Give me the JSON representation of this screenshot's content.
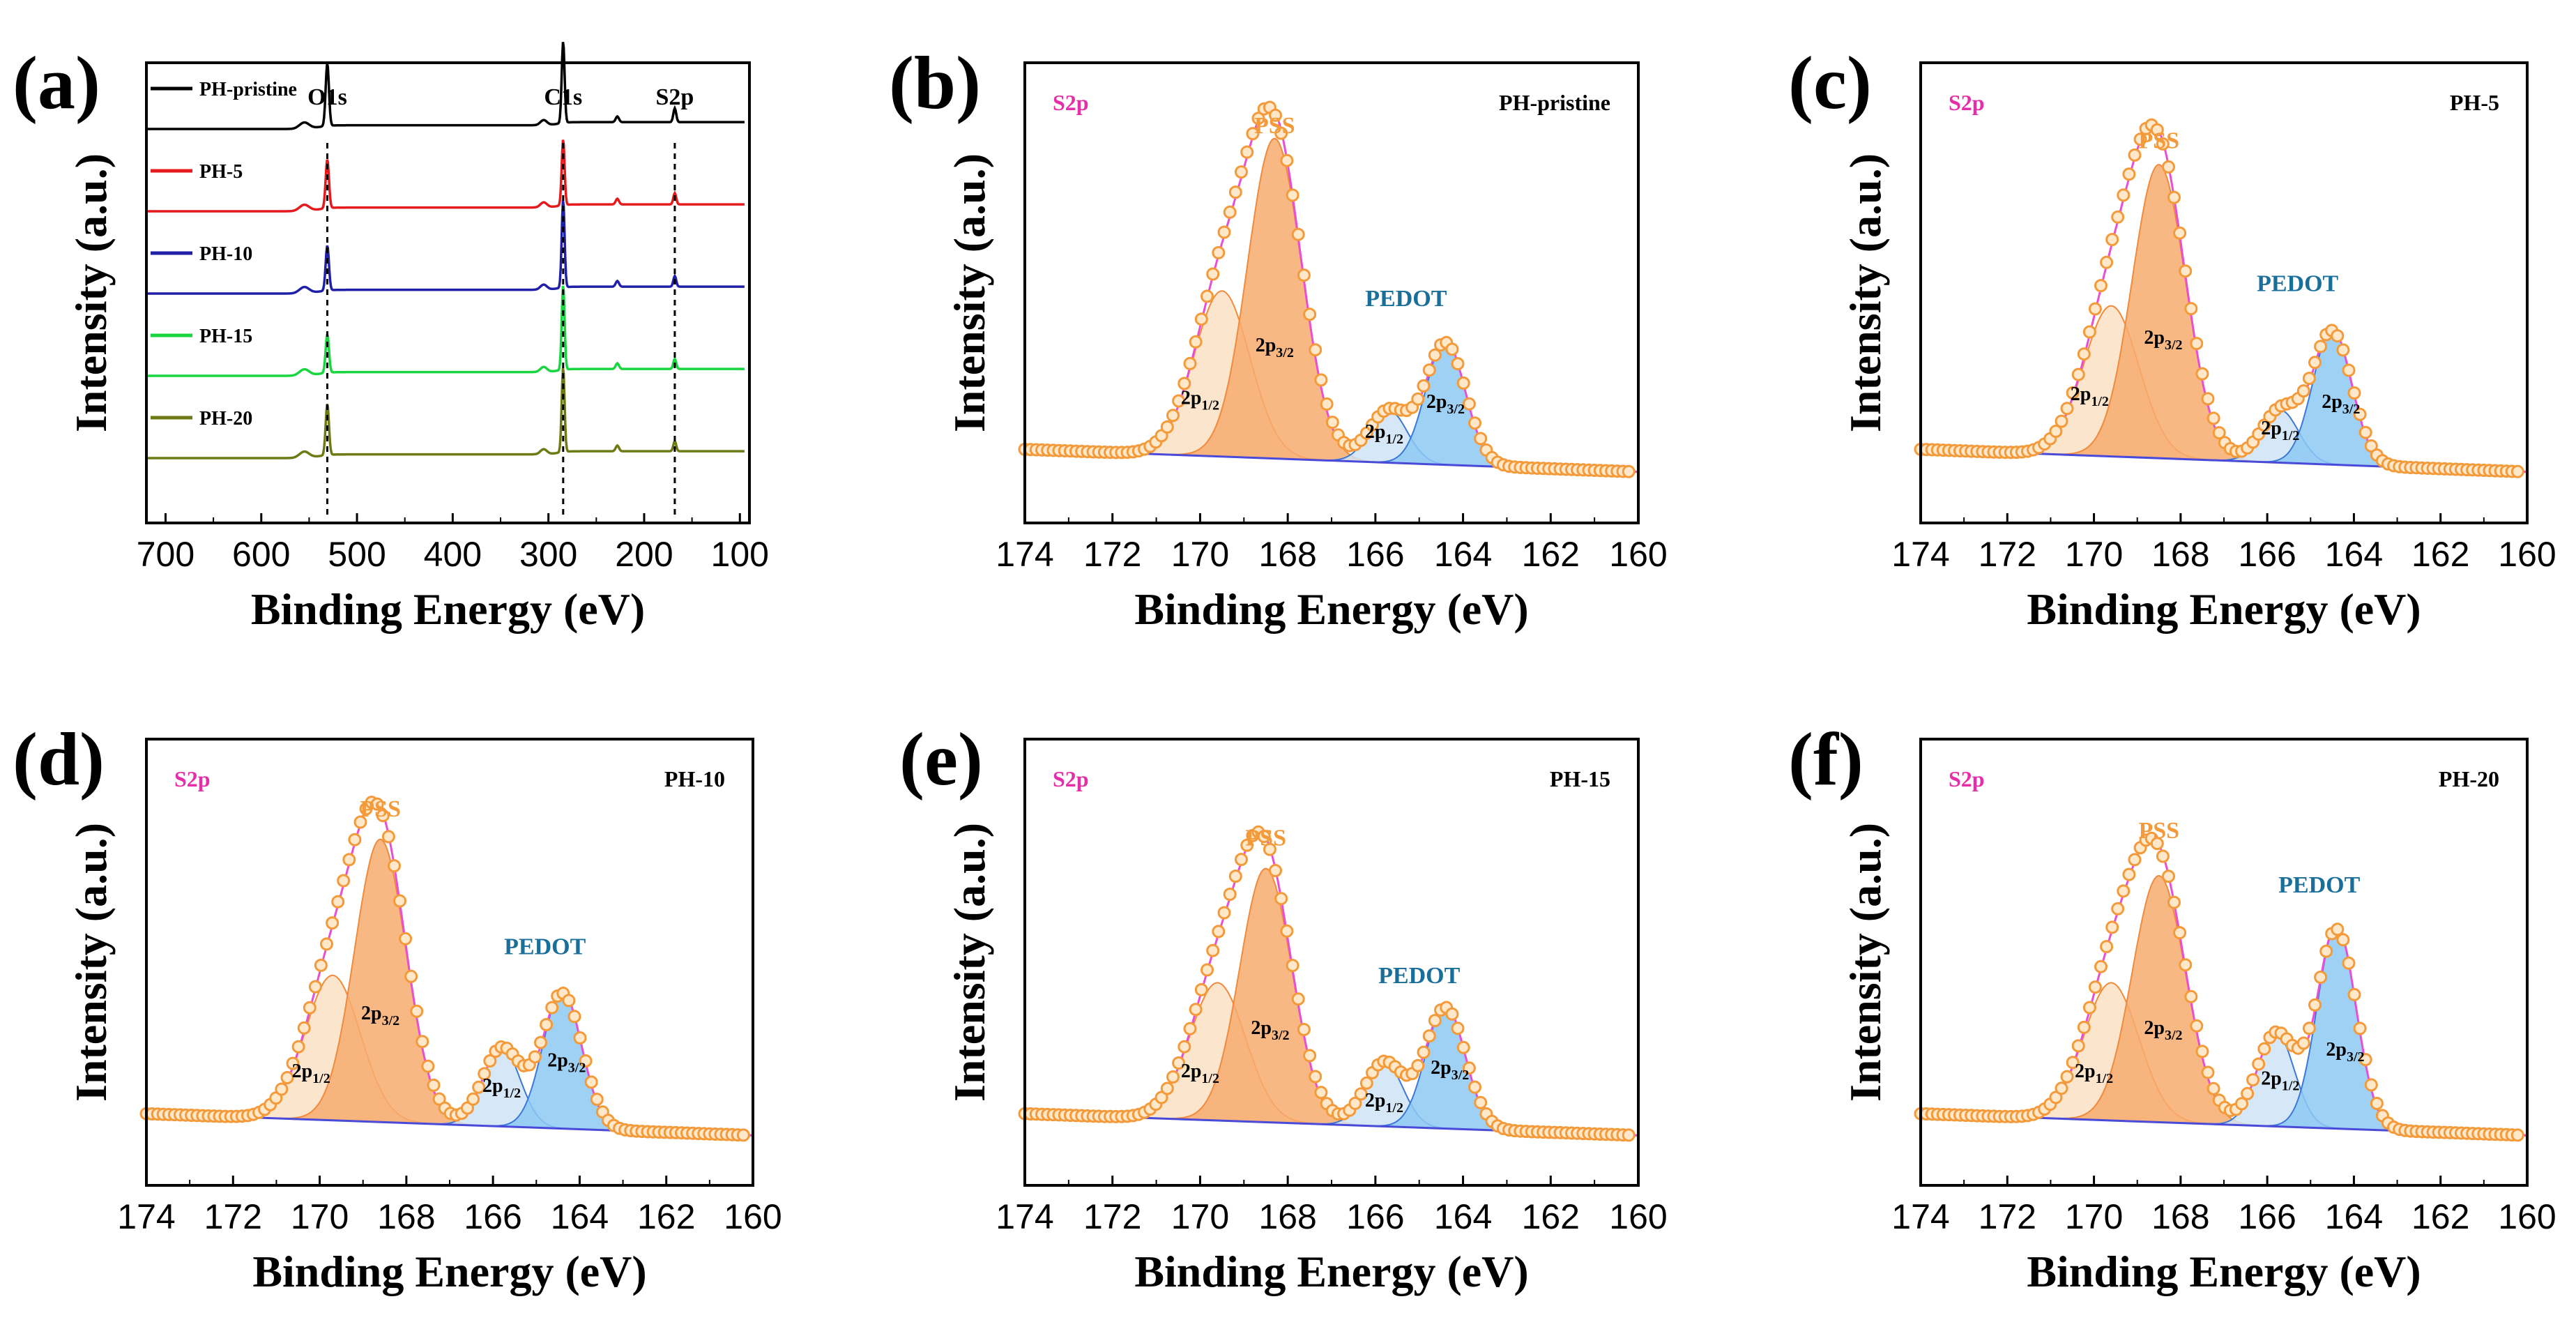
{
  "chart_data": [
    {
      "id": "a",
      "panel_label": "(a)",
      "type": "line",
      "xlabel": "Binding Energy (eV)",
      "ylabel": "Intensity (a.u.)",
      "xlim": [
        720,
        90
      ],
      "xticks": [
        700,
        600,
        500,
        400,
        300,
        200,
        100
      ],
      "peak_markers": [
        {
          "label": "O1s",
          "x": 531
        },
        {
          "label": "C1s",
          "x": 284.6
        },
        {
          "label": "S2p",
          "x": 168
        }
      ],
      "series": [
        {
          "name": "PH-pristine",
          "color": "#000000",
          "offset": 4,
          "heights": {
            "O1s": 1.0,
            "C1s": 1.3,
            "S2p": 0.22
          }
        },
        {
          "name": "PH-5",
          "color": "#e41a1c",
          "offset": 3,
          "heights": {
            "O1s": 0.78,
            "C1s": 1.05,
            "S2p": 0.18
          }
        },
        {
          "name": "PH-10",
          "color": "#1f1fa8",
          "offset": 2,
          "heights": {
            "O1s": 0.72,
            "C1s": 1.4,
            "S2p": 0.17
          }
        },
        {
          "name": "PH-15",
          "color": "#19d640",
          "offset": 1,
          "heights": {
            "O1s": 0.62,
            "C1s": 1.35,
            "S2p": 0.16
          }
        },
        {
          "name": "PH-20",
          "color": "#6e7a14",
          "offset": 0,
          "heights": {
            "O1s": 0.82,
            "C1s": 1.35,
            "S2p": 0.16
          }
        }
      ]
    },
    {
      "id": "b",
      "panel_label": "(b)",
      "type": "line",
      "sample": "PH-pristine",
      "core_level": "S2p",
      "xlabel": "Binding Energy (eV)",
      "ylabel": "Intensity (a.u.)",
      "xlim": [
        174,
        160
      ],
      "xticks": [
        174,
        172,
        170,
        168,
        166,
        164,
        162,
        160
      ],
      "baseline": {
        "x": [
          174,
          160
        ],
        "y": [
          0.14,
          0.08
        ]
      },
      "components": [
        {
          "name": "PSS 2p1/2",
          "label": "2p",
          "sub": "1/2",
          "center": 169.5,
          "height": 0.44,
          "fwhm": 1.5,
          "color": "#fbe0c4",
          "label_x": 170.0,
          "label_y": 0.26
        },
        {
          "name": "PSS 2p3/2",
          "label": "2p",
          "sub": "3/2",
          "center": 168.3,
          "height": 0.85,
          "fwhm": 1.45,
          "color": "#f7ac6e",
          "label_x": 168.3,
          "label_y": 0.4
        },
        {
          "name": "PEDOT 2p1/2",
          "label": "2p",
          "sub": "1/2",
          "center": 165.7,
          "height": 0.14,
          "fwhm": 1.0,
          "color": "#cfe4f6",
          "label_x": 165.8,
          "label_y": 0.17
        },
        {
          "name": "PEDOT 2p3/2",
          "label": "2p",
          "sub": "3/2",
          "center": 164.4,
          "height": 0.33,
          "fwhm": 1.05,
          "color": "#8ec9f3",
          "label_x": 164.4,
          "label_y": 0.25
        }
      ],
      "group_labels": [
        {
          "text": "PSS",
          "x": 168.3,
          "y": 0.98,
          "color": "#f39a3a"
        },
        {
          "text": "PEDOT",
          "x": 165.3,
          "y": 0.52,
          "color": "#1a6f9a"
        }
      ],
      "corner_left": {
        "text": "S2p",
        "color": "#e62ea8"
      },
      "corner_right": {
        "text": "PH-pristine",
        "color": "#000000"
      }
    },
    {
      "id": "c",
      "panel_label": "(c)",
      "type": "line",
      "sample": "PH-5",
      "core_level": "S2p",
      "xlabel": "Binding Energy (eV)",
      "ylabel": "Intensity (a.u.)",
      "xlim": [
        174,
        160
      ],
      "xticks": [
        174,
        172,
        170,
        168,
        166,
        164,
        162,
        160
      ],
      "baseline": {
        "x": [
          174,
          160
        ],
        "y": [
          0.14,
          0.08
        ]
      },
      "components": [
        {
          "name": "PSS 2p1/2",
          "label": "2p",
          "sub": "1/2",
          "center": 169.6,
          "height": 0.4,
          "fwhm": 1.5,
          "color": "#fbe0c4",
          "label_x": 170.1,
          "label_y": 0.27
        },
        {
          "name": "PSS 2p3/2",
          "label": "2p",
          "sub": "3/2",
          "center": 168.5,
          "height": 0.78,
          "fwhm": 1.45,
          "color": "#f7ac6e",
          "label_x": 168.4,
          "label_y": 0.42
        },
        {
          "name": "PEDOT 2p1/2",
          "label": "2p",
          "sub": "1/2",
          "center": 165.7,
          "height": 0.14,
          "fwhm": 1.0,
          "color": "#cfe4f6",
          "label_x": 165.7,
          "label_y": 0.18
        },
        {
          "name": "PEDOT 2p3/2",
          "label": "2p",
          "sub": "3/2",
          "center": 164.5,
          "height": 0.36,
          "fwhm": 1.05,
          "color": "#8ec9f3",
          "label_x": 164.3,
          "label_y": 0.25
        }
      ],
      "group_labels": [
        {
          "text": "PSS",
          "x": 168.5,
          "y": 0.94,
          "color": "#f39a3a"
        },
        {
          "text": "PEDOT",
          "x": 165.3,
          "y": 0.56,
          "color": "#1a6f9a"
        }
      ],
      "corner_left": {
        "text": "S2p",
        "color": "#e62ea8"
      },
      "corner_right": {
        "text": "PH-5",
        "color": "#000000"
      }
    },
    {
      "id": "d",
      "panel_label": "(d)",
      "type": "line",
      "sample": "PH-10",
      "core_level": "S2p",
      "xlabel": "Binding Energy (eV)",
      "ylabel": "Intensity (a.u.)",
      "xlim": [
        174,
        160
      ],
      "xticks": [
        174,
        172,
        170,
        168,
        166,
        164,
        162,
        160
      ],
      "baseline": {
        "x": [
          174,
          160
        ],
        "y": [
          0.14,
          0.08
        ]
      },
      "components": [
        {
          "name": "PSS 2p1/2",
          "label": "2p",
          "sub": "1/2",
          "center": 169.7,
          "height": 0.4,
          "fwhm": 1.5,
          "color": "#fbe0c4",
          "label_x": 170.2,
          "label_y": 0.24
        },
        {
          "name": "PSS 2p3/2",
          "label": "2p",
          "sub": "3/2",
          "center": 168.6,
          "height": 0.78,
          "fwhm": 1.4,
          "color": "#f7ac6e",
          "label_x": 168.6,
          "label_y": 0.4
        },
        {
          "name": "PEDOT 2p1/2",
          "label": "2p",
          "sub": "1/2",
          "center": 165.8,
          "height": 0.22,
          "fwhm": 1.0,
          "color": "#cfe4f6",
          "label_x": 165.8,
          "label_y": 0.2
        },
        {
          "name": "PEDOT 2p3/2",
          "label": "2p",
          "sub": "3/2",
          "center": 164.4,
          "height": 0.38,
          "fwhm": 1.05,
          "color": "#8ec9f3",
          "label_x": 164.3,
          "label_y": 0.27
        }
      ],
      "group_labels": [
        {
          "text": "PSS",
          "x": 168.6,
          "y": 0.96,
          "color": "#f39a3a"
        },
        {
          "text": "PEDOT",
          "x": 164.8,
          "y": 0.58,
          "color": "#1a6f9a"
        }
      ],
      "corner_left": {
        "text": "S2p",
        "color": "#e62ea8"
      },
      "corner_right": {
        "text": "PH-10",
        "color": "#000000"
      }
    },
    {
      "id": "e",
      "panel_label": "(e)",
      "type": "line",
      "sample": "PH-15",
      "core_level": "S2p",
      "xlabel": "Binding Energy (eV)",
      "ylabel": "Intensity (a.u.)",
      "xlim": [
        174,
        160
      ],
      "xticks": [
        174,
        172,
        170,
        168,
        166,
        164,
        162,
        160
      ],
      "baseline": {
        "x": [
          174,
          160
        ],
        "y": [
          0.14,
          0.08
        ]
      },
      "components": [
        {
          "name": "PSS 2p1/2",
          "label": "2p",
          "sub": "1/2",
          "center": 169.6,
          "height": 0.38,
          "fwhm": 1.5,
          "color": "#fbe0c4",
          "label_x": 170.0,
          "label_y": 0.24
        },
        {
          "name": "PSS 2p3/2",
          "label": "2p",
          "sub": "3/2",
          "center": 168.5,
          "height": 0.7,
          "fwhm": 1.4,
          "color": "#f7ac6e",
          "label_x": 168.4,
          "label_y": 0.36
        },
        {
          "name": "PEDOT 2p1/2",
          "label": "2p",
          "sub": "1/2",
          "center": 165.8,
          "height": 0.18,
          "fwhm": 1.0,
          "color": "#cfe4f6",
          "label_x": 165.8,
          "label_y": 0.16
        },
        {
          "name": "PEDOT 2p3/2",
          "label": "2p",
          "sub": "3/2",
          "center": 164.4,
          "height": 0.34,
          "fwhm": 1.05,
          "color": "#8ec9f3",
          "label_x": 164.3,
          "label_y": 0.25
        }
      ],
      "group_labels": [
        {
          "text": "PSS",
          "x": 168.5,
          "y": 0.88,
          "color": "#f39a3a"
        },
        {
          "text": "PEDOT",
          "x": 165.0,
          "y": 0.5,
          "color": "#1a6f9a"
        }
      ],
      "corner_left": {
        "text": "S2p",
        "color": "#e62ea8"
      },
      "corner_right": {
        "text": "PH-15",
        "color": "#000000"
      }
    },
    {
      "id": "f",
      "panel_label": "(f)",
      "type": "line",
      "sample": "PH-20",
      "core_level": "S2p",
      "xlabel": "Binding Energy (eV)",
      "ylabel": "Intensity (a.u.)",
      "xlim": [
        174,
        160
      ],
      "xticks": [
        174,
        172,
        170,
        168,
        166,
        164,
        162,
        160
      ],
      "baseline": {
        "x": [
          174,
          160
        ],
        "y": [
          0.14,
          0.08
        ]
      },
      "components": [
        {
          "name": "PSS 2p1/2",
          "label": "2p",
          "sub": "1/2",
          "center": 169.6,
          "height": 0.38,
          "fwhm": 1.5,
          "color": "#fbe0c4",
          "label_x": 170.0,
          "label_y": 0.24
        },
        {
          "name": "PSS 2p3/2",
          "label": "2p",
          "sub": "3/2",
          "center": 168.5,
          "height": 0.68,
          "fwhm": 1.45,
          "color": "#f7ac6e",
          "label_x": 168.4,
          "label_y": 0.36
        },
        {
          "name": "PEDOT 2p1/2",
          "label": "2p",
          "sub": "1/2",
          "center": 165.8,
          "height": 0.26,
          "fwhm": 1.0,
          "color": "#cfe4f6",
          "label_x": 165.7,
          "label_y": 0.22
        },
        {
          "name": "PEDOT 2p3/2",
          "label": "2p",
          "sub": "3/2",
          "center": 164.4,
          "height": 0.56,
          "fwhm": 1.05,
          "color": "#8ec9f3",
          "label_x": 164.2,
          "label_y": 0.3
        }
      ],
      "group_labels": [
        {
          "text": "PSS",
          "x": 168.5,
          "y": 0.9,
          "color": "#f39a3a"
        },
        {
          "text": "PEDOT",
          "x": 164.8,
          "y": 0.75,
          "color": "#1a6f9a"
        }
      ],
      "corner_left": {
        "text": "S2p",
        "color": "#e62ea8"
      },
      "corner_right": {
        "text": "PH-20",
        "color": "#000000"
      }
    }
  ],
  "colors": {
    "data_points": "#f39a3a",
    "data_points_fill": "#ffe7c9",
    "envelope": "#e84fd6",
    "baseline": "#4a4ad8",
    "pss_outline": "#f08a3c",
    "pedot_outline": "#3b78d8"
  }
}
